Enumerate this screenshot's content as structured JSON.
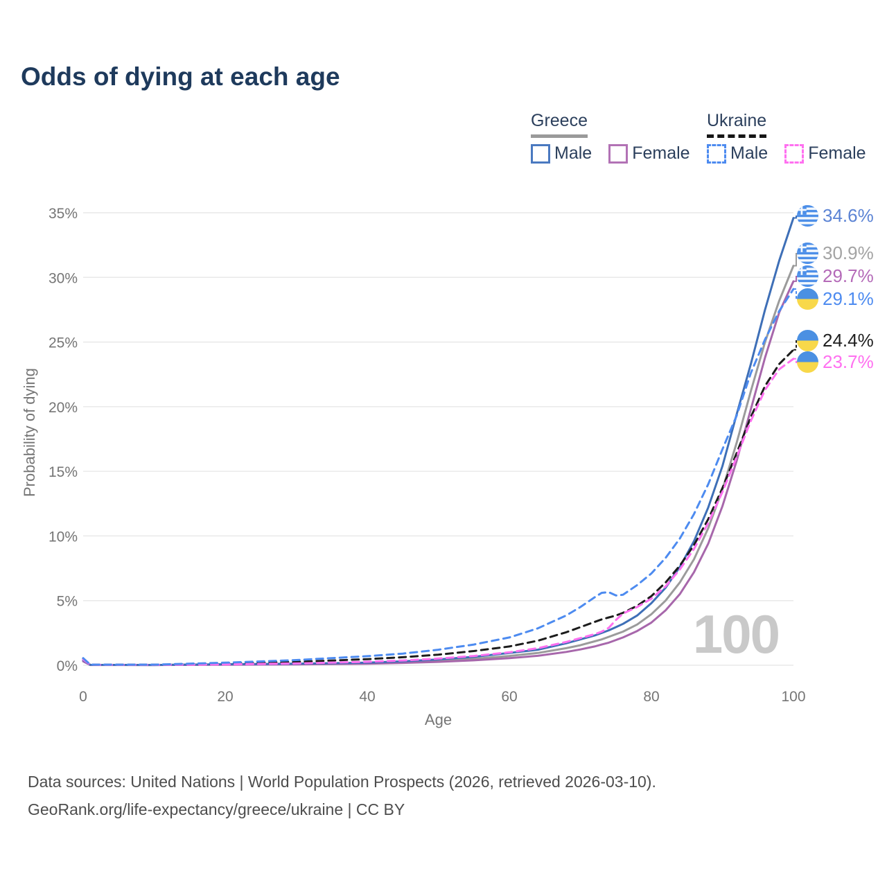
{
  "title": "Odds of dying at each age",
  "legend": {
    "groups": [
      {
        "country": "Greece",
        "underline_color": "#9a9a9a",
        "underline_style": "solid",
        "items": [
          {
            "label": "Male",
            "color": "#4a79c0",
            "dash": false
          },
          {
            "label": "Female",
            "color": "#b272b5",
            "dash": false
          }
        ]
      },
      {
        "country": "Ukraine",
        "underline_color": "#161616",
        "underline_style": "dashed",
        "items": [
          {
            "label": "Male",
            "color": "#4d8bf0",
            "dash": true
          },
          {
            "label": "Female",
            "color": "#ff70f0",
            "dash": true
          }
        ]
      }
    ]
  },
  "chart_data": {
    "type": "line",
    "title": "Odds of dying at each age",
    "xlabel": "Age",
    "ylabel": "Probability of dying",
    "xlim": [
      0,
      100
    ],
    "ylim": [
      0,
      35
    ],
    "grid": "horizontal",
    "legend_position": "top-right",
    "watermark": "100",
    "x_ticks": [
      0,
      20,
      40,
      60,
      80,
      100
    ],
    "x_tick_labels": [
      "0",
      "20",
      "40",
      "60",
      "80",
      "100"
    ],
    "y_ticks": [
      0,
      5,
      10,
      15,
      20,
      25,
      30,
      35
    ],
    "y_tick_labels": [
      "0%",
      "5%",
      "10%",
      "15%",
      "20%",
      "25%",
      "30%",
      "35%"
    ],
    "x": [
      0,
      1,
      10,
      20,
      30,
      40,
      45,
      50,
      55,
      60,
      64,
      68,
      70,
      72,
      73,
      74,
      75,
      76,
      78,
      80,
      82,
      84,
      86,
      88,
      90,
      92,
      94,
      96,
      98,
      100
    ],
    "series": [
      {
        "name": "Greece Total",
        "country": "Greece",
        "sex": "Total",
        "color": "#9b9b9b",
        "label_color": "#a3a3a3",
        "dash": false,
        "flag": "greece",
        "end_label": "30.9%",
        "values": [
          0.35,
          0.03,
          0.02,
          0.06,
          0.1,
          0.16,
          0.24,
          0.35,
          0.5,
          0.72,
          0.95,
          1.32,
          1.55,
          1.85,
          2.0,
          2.2,
          2.4,
          2.6,
          3.15,
          3.95,
          5.0,
          6.4,
          8.2,
          10.6,
          13.6,
          17.2,
          21.2,
          25.0,
          28.2,
          30.9
        ]
      },
      {
        "name": "Greece Female",
        "country": "Greece",
        "sex": "Female",
        "color": "#a767ab",
        "label_color": "#b46ab8",
        "dash": false,
        "flag": "greece",
        "end_label": "29.7%",
        "values": [
          0.3,
          0.02,
          0.02,
          0.04,
          0.07,
          0.12,
          0.18,
          0.26,
          0.38,
          0.55,
          0.73,
          1.03,
          1.22,
          1.45,
          1.6,
          1.75,
          1.95,
          2.15,
          2.65,
          3.3,
          4.25,
          5.5,
          7.2,
          9.4,
          12.3,
          15.8,
          19.8,
          23.8,
          27.3,
          29.7
        ]
      },
      {
        "name": "Greece Male",
        "country": "Greece",
        "sex": "Male",
        "color": "#3e6fb7",
        "label_color": "#5b83d4",
        "dash": false,
        "flag": "greece",
        "end_label": "34.6%",
        "values": [
          0.4,
          0.03,
          0.02,
          0.08,
          0.12,
          0.2,
          0.3,
          0.45,
          0.65,
          0.95,
          1.2,
          1.7,
          2.0,
          2.3,
          2.5,
          2.7,
          2.95,
          3.2,
          3.85,
          4.8,
          6.0,
          7.6,
          9.6,
          12.2,
          15.4,
          19.4,
          23.3,
          27.5,
          31.3,
          34.6
        ]
      },
      {
        "name": "Ukraine Total",
        "country": "Ukraine",
        "sex": "Total",
        "color": "#1c1c1c",
        "label_color": "#1f1f1f",
        "dash": true,
        "flag": "ukraine",
        "end_label": "24.4%",
        "values": [
          0.5,
          0.04,
          0.04,
          0.13,
          0.26,
          0.47,
          0.62,
          0.82,
          1.1,
          1.45,
          1.9,
          2.55,
          2.95,
          3.35,
          3.55,
          3.7,
          3.85,
          4.05,
          4.6,
          5.35,
          6.4,
          7.7,
          9.3,
          11.3,
          13.7,
          16.4,
          19.2,
          21.6,
          23.3,
          24.4
        ]
      },
      {
        "name": "Ukraine Female",
        "country": "Ukraine",
        "sex": "Female",
        "color": "#ff70f0",
        "label_color": "#ff70f0",
        "dash": true,
        "flag": "ukraine",
        "end_label": "23.7%",
        "values": [
          0.45,
          0.04,
          0.03,
          0.07,
          0.14,
          0.27,
          0.37,
          0.52,
          0.72,
          1.0,
          1.32,
          1.8,
          2.1,
          2.4,
          2.6,
          2.9,
          3.5,
          4.0,
          4.5,
          5.15,
          6.1,
          7.4,
          9.0,
          11.0,
          13.4,
          16.1,
          18.9,
          21.3,
          22.9,
          23.7
        ]
      },
      {
        "name": "Ukraine Male",
        "country": "Ukraine",
        "sex": "Male",
        "color": "#4d8bf0",
        "label_color": "#4d8bf0",
        "dash": true,
        "flag": "ukraine",
        "end_label": "29.1%",
        "values": [
          0.55,
          0.05,
          0.05,
          0.2,
          0.4,
          0.7,
          0.9,
          1.2,
          1.6,
          2.15,
          2.85,
          3.85,
          4.5,
          5.25,
          5.6,
          5.65,
          5.4,
          5.45,
          6.2,
          7.1,
          8.3,
          9.8,
          11.7,
          14.0,
          16.7,
          19.3,
          22.6,
          25.2,
          27.4,
          29.1
        ]
      }
    ]
  },
  "footer": {
    "line1": "Data sources: United Nations | World Population Prospects (2026, retrieved 2026-03-10).",
    "line2": "GeoRank.org/life-expectancy/greece/ukraine | CC BY"
  }
}
